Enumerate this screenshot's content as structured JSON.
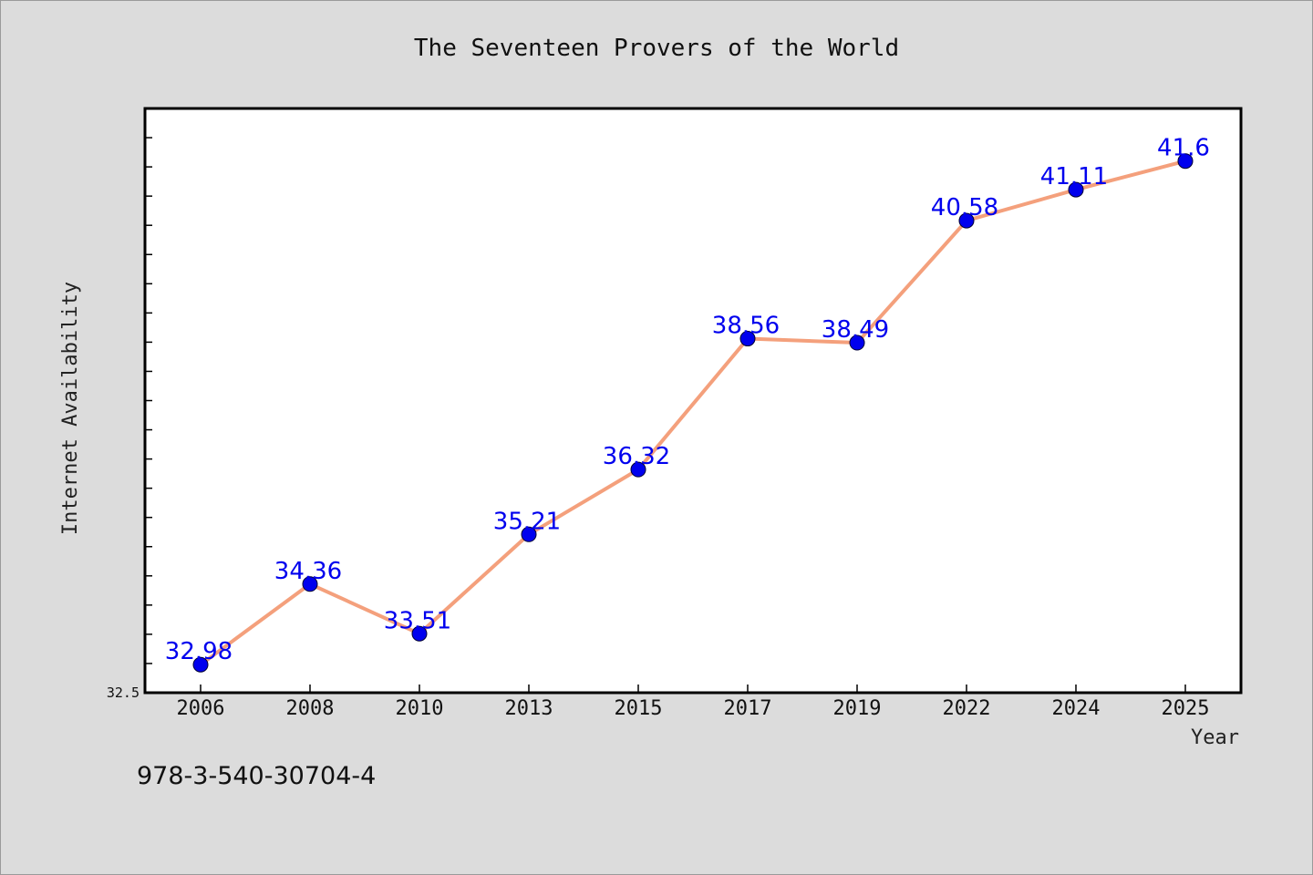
{
  "chart_data": {
    "type": "line",
    "title": "The Seventeen Provers of the World",
    "xlabel": "Year",
    "ylabel": "Internet Availability",
    "categories": [
      "2006",
      "2008",
      "2010",
      "2013",
      "2015",
      "2017",
      "2019",
      "2022",
      "2024",
      "2025"
    ],
    "series": [
      {
        "values": [
          32.98,
          34.36,
          33.51,
          35.21,
          36.32,
          38.56,
          38.49,
          40.58,
          41.11,
          41.6
        ],
        "labels": [
          "32.98",
          "34.36",
          "33.51",
          "35.21",
          "36.32",
          "38.56",
          "38.49",
          "40.58",
          "41.11",
          "41.6"
        ]
      }
    ],
    "ylim": [
      32.5,
      42.5
    ],
    "y_ticks_labeled": [
      "32.5"
    ],
    "grid": false,
    "colors": {
      "line": "#f4a07c",
      "marker": "#0000ee",
      "data_label": "#0000ee"
    }
  },
  "footnote": "978-3-540-30704-4"
}
